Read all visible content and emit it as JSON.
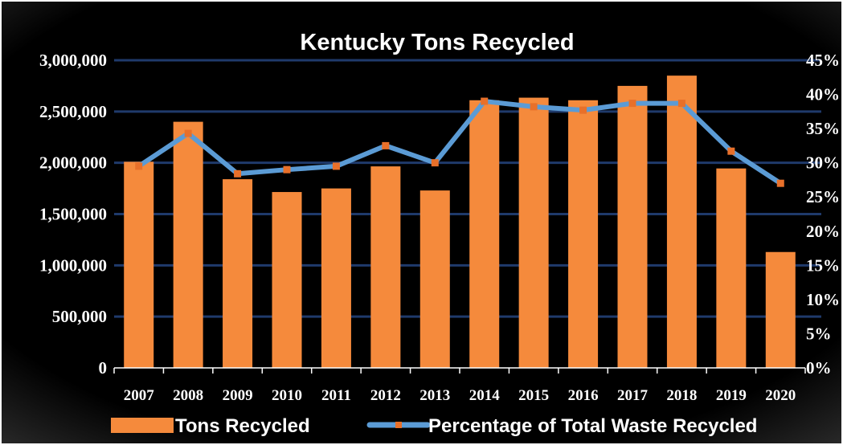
{
  "chart_data": {
    "type": "bar",
    "title": "Kentucky Tons Recycled",
    "categories": [
      "2007",
      "2008",
      "2009",
      "2010",
      "2011",
      "2012",
      "2013",
      "2014",
      "2015",
      "2016",
      "2017",
      "2018",
      "2019",
      "2020"
    ],
    "series": [
      {
        "name": "Tons Recycled",
        "type": "bar",
        "axis": "left",
        "values": [
          2010000,
          2400000,
          1840000,
          1715000,
          1750000,
          1965000,
          1730000,
          2610000,
          2635000,
          2610000,
          2750000,
          2850000,
          1945000,
          1130000
        ]
      },
      {
        "name": "Percentage of Total Waste Recycled",
        "type": "line",
        "axis": "right",
        "unit": "%",
        "values": [
          29.5,
          34.3,
          28.4,
          29.0,
          29.5,
          32.5,
          30.0,
          39.0,
          38.2,
          37.7,
          38.7,
          38.7,
          31.7,
          27.0
        ]
      }
    ],
    "y_left": {
      "ylim": [
        0,
        3000000
      ],
      "ticks": [
        0,
        500000,
        1000000,
        1500000,
        2000000,
        2500000,
        3000000
      ],
      "tick_labels": [
        "0",
        "500,000",
        "1,000,000",
        "1,500,000",
        "2,000,000",
        "2,500,000",
        "3,000,000"
      ]
    },
    "y_right": {
      "ylim": [
        0,
        45
      ],
      "ticks": [
        0,
        5,
        10,
        15,
        20,
        25,
        30,
        35,
        40,
        45
      ],
      "tick_labels": [
        "0%",
        "5%",
        "10%",
        "15%",
        "20%",
        "25%",
        "30%",
        "35%",
        "40%",
        "45%"
      ]
    },
    "grid": true,
    "legend_position": "bottom",
    "colors": {
      "background": "#000000",
      "bar": "#f58a3c",
      "line": "#5b9bd5",
      "marker": "#e8702a",
      "grid": "#1f3a6b",
      "text": "#ffffff"
    }
  }
}
